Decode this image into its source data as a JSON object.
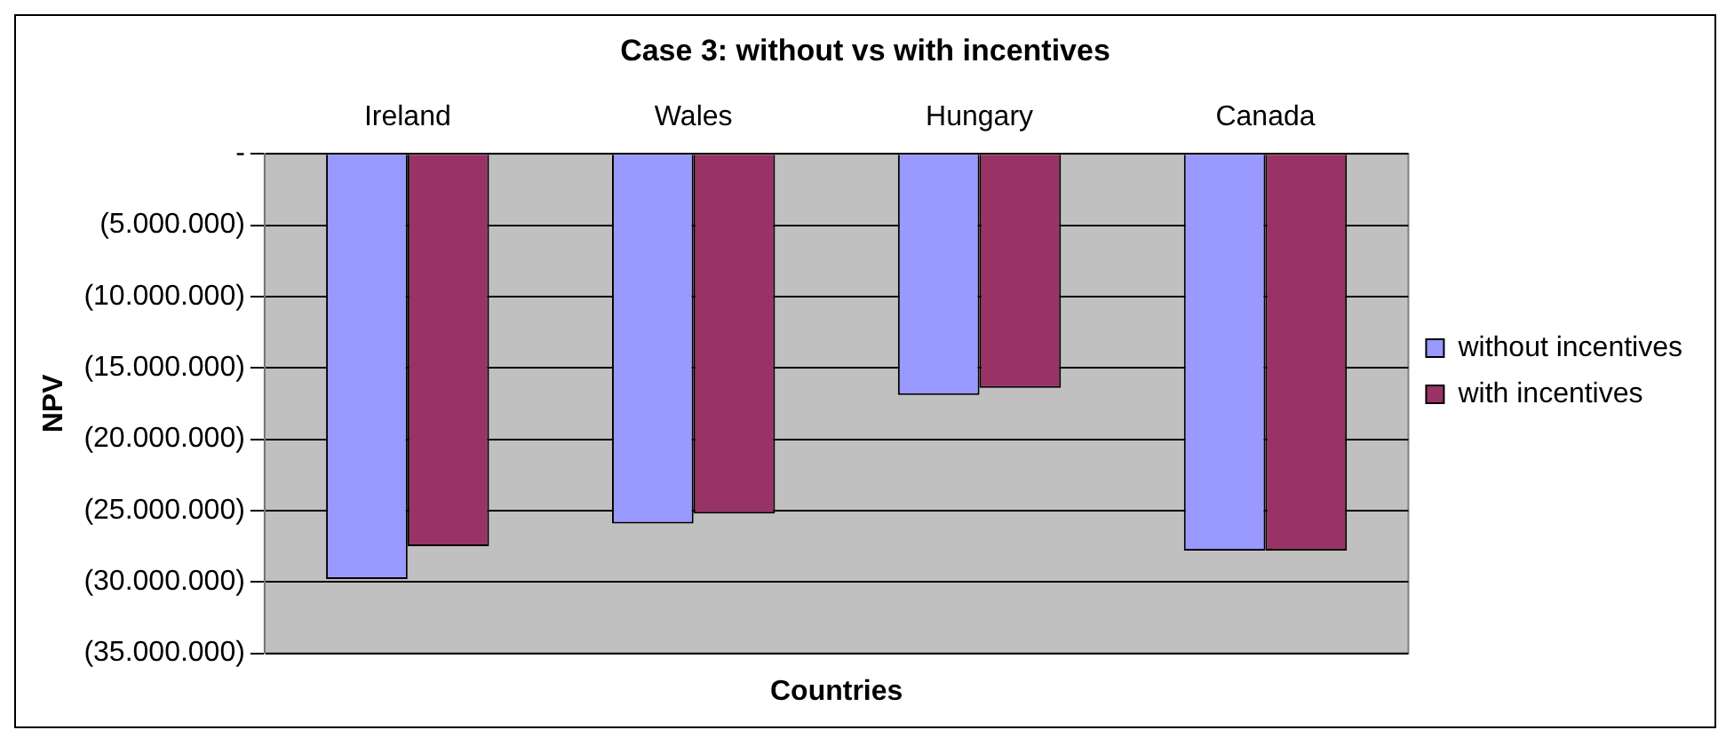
{
  "chart_data": {
    "type": "bar",
    "title": "Case 3: without vs with incentives",
    "xlabel": "Countries",
    "ylabel": "NPV",
    "categories": [
      "Ireland",
      "Wales",
      "Hungary",
      "Canada"
    ],
    "series": [
      {
        "name": "without incentives",
        "color": "#9999ff",
        "values": [
          -29800000,
          -25900000,
          -16900000,
          -27800000
        ]
      },
      {
        "name": "with incentives",
        "color": "#993366",
        "values": [
          -27500000,
          -25200000,
          -16400000,
          -27800000
        ]
      }
    ],
    "ylim": [
      -35000000,
      0
    ],
    "yticks": [
      {
        "value": 0,
        "label": "-"
      },
      {
        "value": -5000000,
        "label": "(5.000.000)"
      },
      {
        "value": -10000000,
        "label": "(10.000.000)"
      },
      {
        "value": -15000000,
        "label": "(15.000.000)"
      },
      {
        "value": -20000000,
        "label": "(20.000.000)"
      },
      {
        "value": -25000000,
        "label": "(25.000.000)"
      },
      {
        "value": -30000000,
        "label": "(30.000.000)"
      },
      {
        "value": -35000000,
        "label": "(35.000.000)"
      }
    ],
    "grid": "y",
    "legend": "right"
  }
}
